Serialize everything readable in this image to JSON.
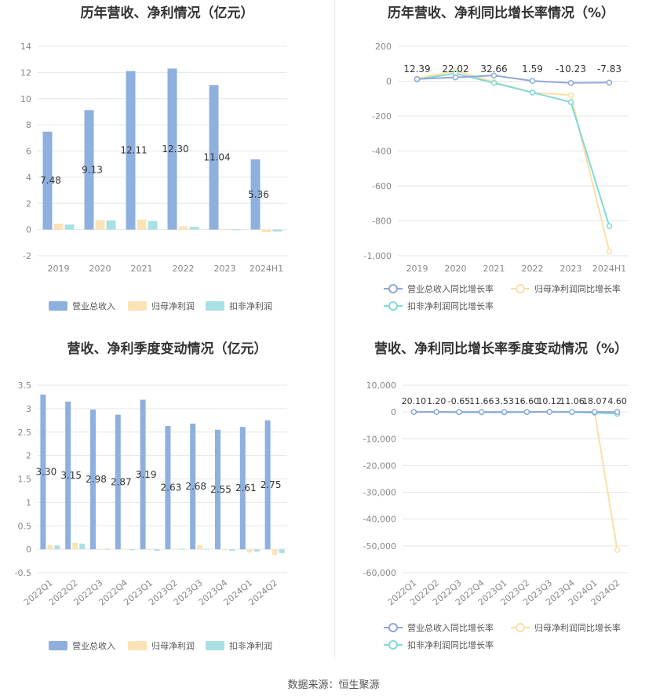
{
  "source_text": "数据来源：恒生聚源",
  "colors": {
    "revenue": "#8EB0DE",
    "net_profit": "#FBE3B5",
    "deducted_profit": "#A8E0E3",
    "revenue_growth_line": "#8FA8D8",
    "net_profit_growth_line": "#FCDFA6",
    "deducted_growth_line": "#82D8D8",
    "grid": "#E6E6E6",
    "axis_text": "#888888"
  },
  "chart_data": [
    {
      "id": "annual_amounts",
      "type": "bar",
      "title": "历年营收、净利情况（亿元）",
      "categories": [
        "2019",
        "2020",
        "2021",
        "2022",
        "2023",
        "2024H1"
      ],
      "ylim": [
        -2,
        14
      ],
      "yticks": [
        "14",
        "12",
        "10",
        "8",
        "6",
        "4",
        "2",
        "0",
        "-2"
      ],
      "ytick_values": [
        14,
        12,
        10,
        8,
        6,
        4,
        2,
        0,
        -2
      ],
      "series": [
        {
          "name": "营业总收入",
          "values": [
            7.48,
            9.13,
            12.11,
            12.3,
            11.04,
            5.36
          ],
          "labels": [
            "7.48",
            "9.13",
            "12.11",
            "12.30",
            "11.04",
            "5.36"
          ]
        },
        {
          "name": "归母净利润",
          "values": [
            0.45,
            0.72,
            0.76,
            0.25,
            0.02,
            -0.2
          ]
        },
        {
          "name": "扣非净利润",
          "values": [
            0.38,
            0.7,
            0.65,
            0.2,
            0.01,
            -0.15
          ]
        }
      ],
      "legend_position": "bottom"
    },
    {
      "id": "annual_growth",
      "type": "line",
      "title": "历年营收、净利同比增长率情况（%）",
      "categories": [
        "2019",
        "2020",
        "2021",
        "2022",
        "2023",
        "2024H1"
      ],
      "ylim": [
        -1000,
        200
      ],
      "yticks": [
        "200",
        "0",
        "-200",
        "-400",
        "-600",
        "-800",
        "-1,000"
      ],
      "ytick_values": [
        200,
        0,
        -200,
        -400,
        -600,
        -800,
        -1000
      ],
      "series": [
        {
          "name": "营业总收入同比增长率",
          "values": [
            12.39,
            22.02,
            32.66,
            1.59,
            -10.23,
            -7.83
          ],
          "labels": [
            "12.39",
            "22.02",
            "32.66",
            "1.59",
            "-10.23",
            "-7.83"
          ]
        },
        {
          "name": "归母净利润同比增长率",
          "values": [
            15,
            60,
            -5,
            -65,
            -80,
            -975
          ]
        },
        {
          "name": "扣非净利润同比增长率",
          "values": [
            10,
            45,
            -10,
            -65,
            -120,
            -830
          ]
        }
      ],
      "legend_position": "bottom"
    },
    {
      "id": "quarterly_amounts",
      "type": "bar",
      "title": "营收、净利季度变动情况（亿元）",
      "categories": [
        "2022Q1",
        "2022Q2",
        "2022Q3",
        "2022Q4",
        "2023Q1",
        "2023Q2",
        "2023Q3",
        "2023Q4",
        "2024Q1",
        "2024Q2"
      ],
      "ylim": [
        -0.5,
        3.5
      ],
      "yticks": [
        "3.5",
        "3",
        "2.5",
        "2",
        "1.5",
        "1",
        "0.5",
        "0",
        "-0.5"
      ],
      "ytick_values": [
        3.5,
        3,
        2.5,
        2,
        1.5,
        1,
        0.5,
        0,
        -0.5
      ],
      "series": [
        {
          "name": "营业总收入",
          "values": [
            3.3,
            3.15,
            2.98,
            2.87,
            3.19,
            2.63,
            2.68,
            2.55,
            2.61,
            2.75
          ],
          "labels": [
            "3.30",
            "3.15",
            "2.98",
            "2.87",
            "3.19",
            "2.63",
            "2.68",
            "2.55",
            "2.61",
            "2.75"
          ]
        },
        {
          "name": "归母净利润",
          "values": [
            0.09,
            0.14,
            0.01,
            0.01,
            -0.02,
            0.01,
            0.09,
            -0.02,
            -0.07,
            -0.12
          ]
        },
        {
          "name": "扣非净利润",
          "values": [
            0.08,
            0.12,
            0.01,
            -0.02,
            -0.03,
            0.01,
            0.01,
            -0.03,
            -0.05,
            -0.08
          ]
        }
      ],
      "legend_position": "bottom"
    },
    {
      "id": "quarterly_growth",
      "type": "line",
      "title": "营收、净利同比增长率季度变动情况（%）",
      "categories": [
        "2022Q1",
        "2022Q2",
        "2022Q3",
        "2022Q4",
        "2023Q1",
        "2023Q2",
        "2023Q3",
        "2023Q4",
        "2024Q1",
        "2024Q2"
      ],
      "ylim": [
        -60000,
        10000
      ],
      "yticks": [
        "10,000",
        "0",
        "-10,000",
        "-20,000",
        "-30,000",
        "-40,000",
        "-50,000",
        "-60,000"
      ],
      "ytick_values": [
        10000,
        0,
        -10000,
        -20000,
        -30000,
        -40000,
        -50000,
        -60000
      ],
      "series": [
        {
          "name": "营业总收入同比增长率",
          "values": [
            20.1,
            1.2,
            -0.65,
            11.66,
            3.53,
            16.6,
            10.12,
            11.06,
            18.07,
            4.6
          ],
          "labels": [
            "20.10",
            "1.20",
            "-0.65",
            "11.66",
            "3.53",
            "16.60",
            "10.12",
            "11.06",
            "18.07",
            "4.60"
          ]
        },
        {
          "name": "归母净利润同比增长率",
          "values": [
            30,
            40,
            -80,
            -100,
            -120,
            -50,
            200,
            -60,
            -200,
            -51500
          ]
        },
        {
          "name": "扣非净利润同比增长率",
          "values": [
            20,
            30,
            -90,
            -150,
            -130,
            -60,
            100,
            -80,
            -300,
            -700
          ]
        }
      ],
      "legend_position": "bottom"
    }
  ]
}
